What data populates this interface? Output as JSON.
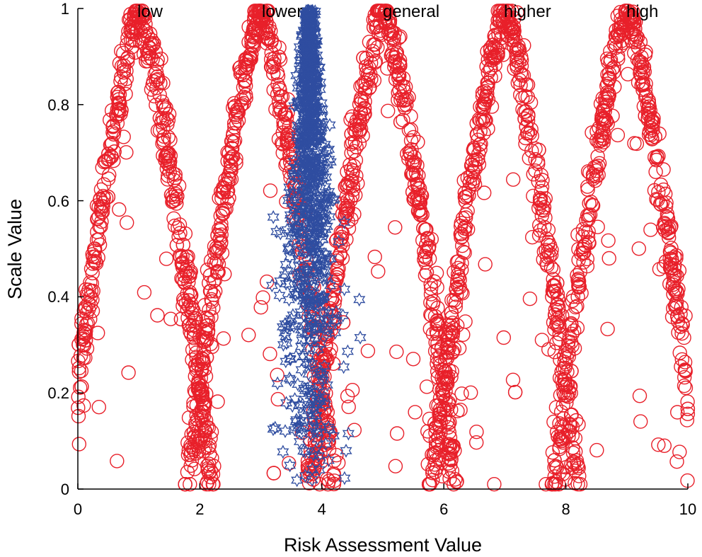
{
  "chart_data": {
    "type": "scatter",
    "title": "",
    "xlabel": "Risk Assessment Value",
    "ylabel": "Scale Value",
    "xlim": [
      0,
      10
    ],
    "ylim": [
      0,
      1
    ],
    "xticks": [
      "0",
      "2",
      "4",
      "6",
      "8",
      "10"
    ],
    "yticks": [
      "0",
      "0.2",
      "0.4",
      "0.6",
      "0.8",
      "1"
    ],
    "grid": false,
    "legend": "none",
    "region_labels": [
      {
        "text": "low",
        "x": 1.3
      },
      {
        "text": "lower",
        "x": 3.3
      },
      {
        "text": "general",
        "x": 5.6
      },
      {
        "text": "higher",
        "x": 7.4
      },
      {
        "text": "high",
        "x": 9.4
      }
    ],
    "series": [
      {
        "marker": "circle",
        "color": "#e8202a",
        "membership_peaks": [
          1,
          3,
          5,
          7,
          9
        ],
        "peak_halfwidth": 1.2,
        "approx_point_count": 2600
      },
      {
        "marker": "hexagram",
        "color": "#2f4da0",
        "center_x": 3.8,
        "x_range": [
          2.3,
          5.5
        ],
        "approx_point_count": 900
      }
    ]
  }
}
